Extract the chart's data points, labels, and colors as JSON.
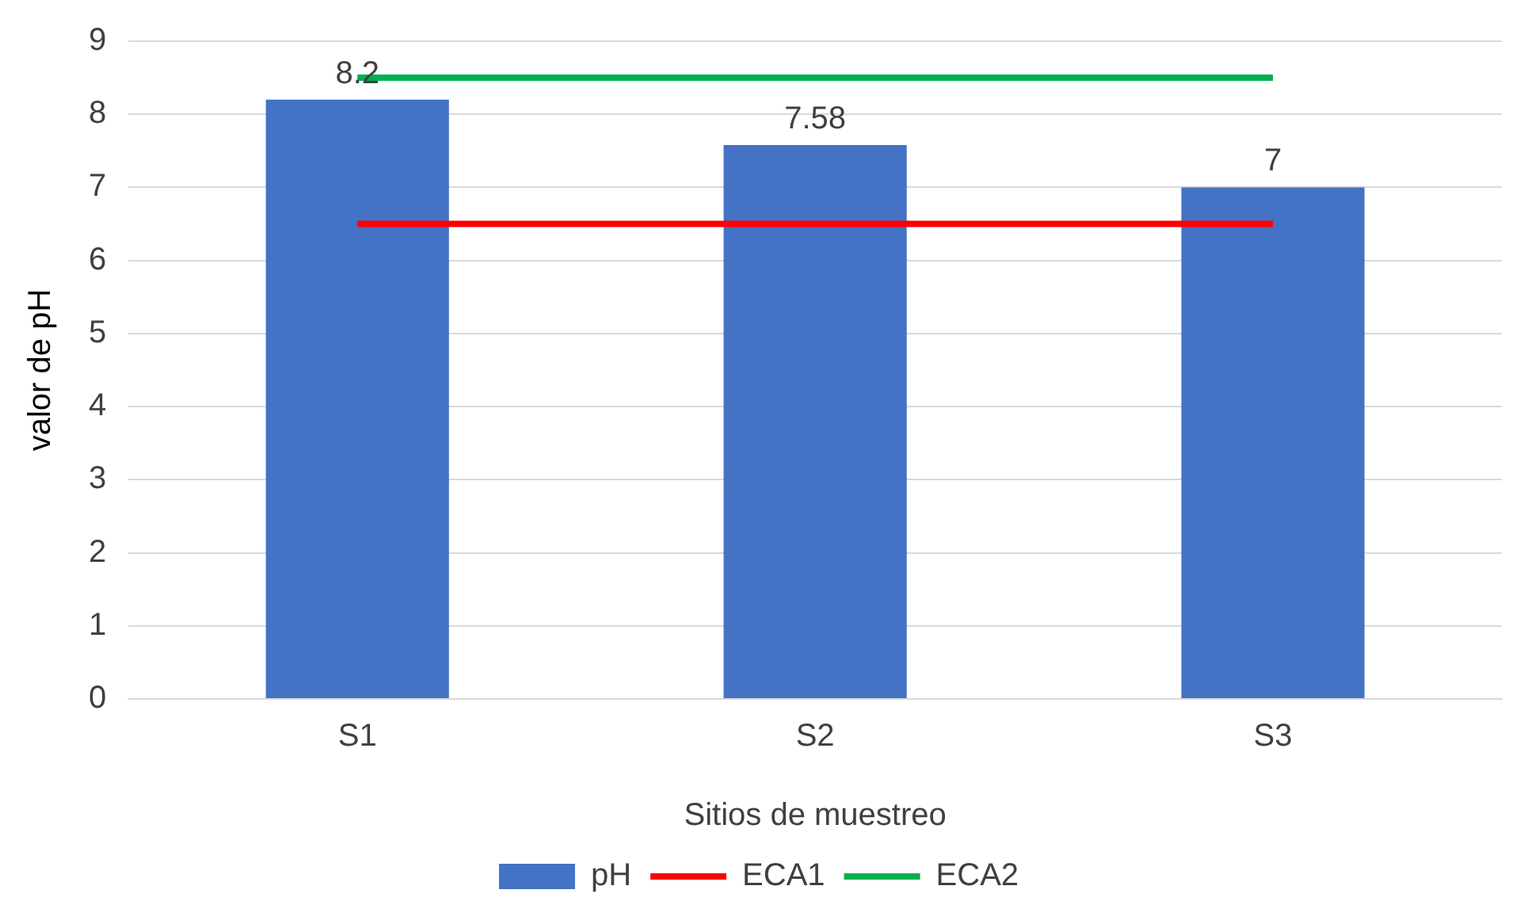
{
  "chart_data": {
    "type": "bar",
    "xlabel": "Sitios de muestreo",
    "ylabel": "valor de pH",
    "categories": [
      "S1",
      "S2",
      "S3"
    ],
    "series": [
      {
        "name": "pH",
        "color": "#4472c4",
        "values": [
          8.2,
          7.58,
          7
        ],
        "value_labels": [
          "8.2",
          "7.58",
          "7"
        ]
      },
      {
        "name": "ECA1",
        "type": "line",
        "color": "#ff0000",
        "values": [
          6.5,
          6.5,
          6.5
        ]
      },
      {
        "name": "ECA2",
        "type": "line",
        "color": "#00b050",
        "values": [
          8.5,
          8.5,
          8.5
        ]
      }
    ],
    "ylim": [
      0,
      9
    ],
    "yticks": [
      0,
      1,
      2,
      3,
      4,
      5,
      6,
      7,
      8,
      9
    ],
    "grid": "y",
    "legend": "bottom",
    "marker": "none"
  }
}
